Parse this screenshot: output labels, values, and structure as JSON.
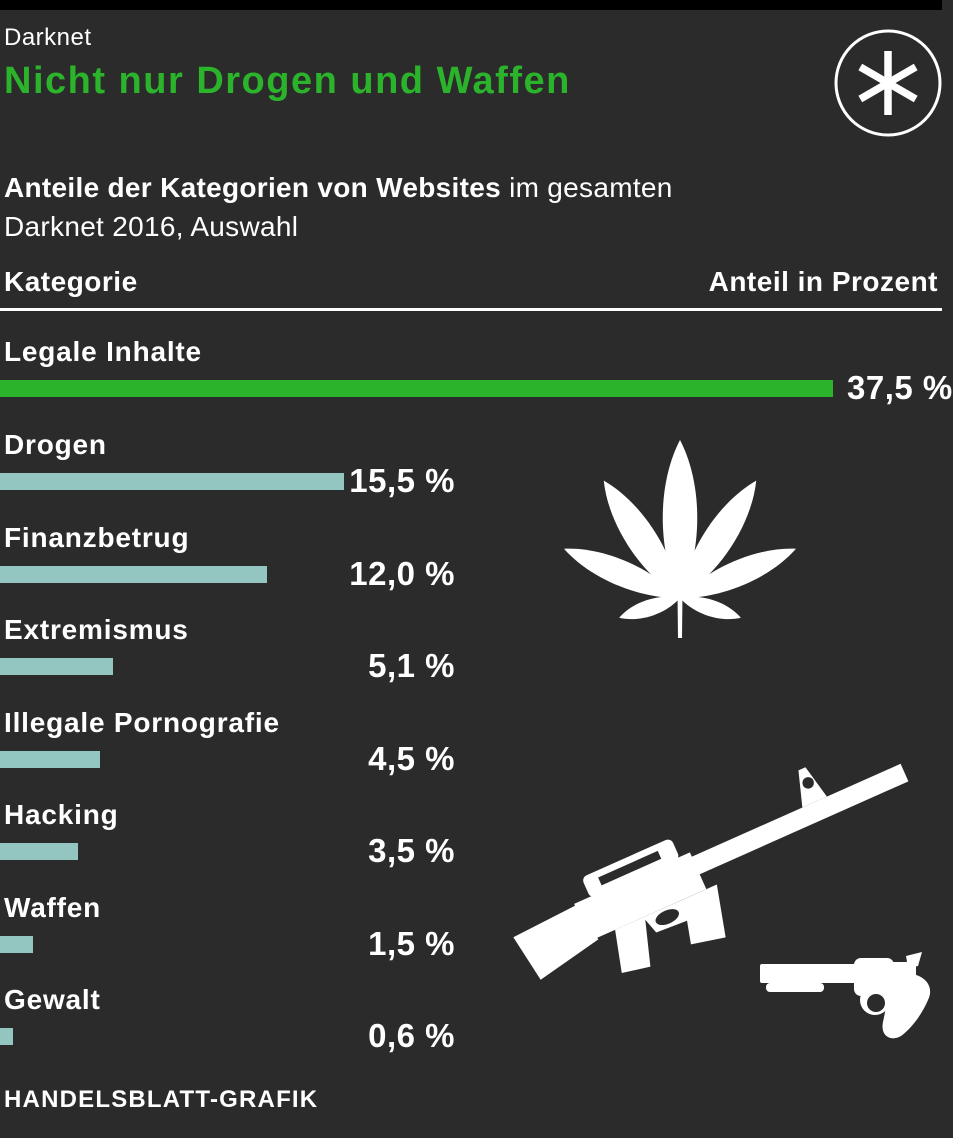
{
  "page": {
    "kicker": "Darknet",
    "headline": "Nicht nur Drogen und Waffen",
    "subtitle": {
      "bold": "Anteile der Kategorien von Websites",
      "tail": " im gesamten",
      "line2": "Darknet 2016, Auswahl"
    },
    "source": "HANDELSBLATT-GRAFIK"
  },
  "table": {
    "col_left": "Kategorie",
    "col_right": "Anteil in Prozent"
  },
  "colors": {
    "background": "#2b2b2b",
    "top_strip": "#000000",
    "headline_green": "#2bb42b",
    "bar_green": "#2bb42b",
    "bar_teal": "#93c6c0",
    "text": "#ffffff",
    "divider": "#ffffff"
  },
  "icons": {
    "logo": "asterisk-in-circle-icon",
    "drogen_illustration": "cannabis-leaf-icon",
    "waffen_illustrations": [
      "assault-rifle-icon",
      "revolver-icon"
    ]
  },
  "chart_data": {
    "type": "bar",
    "orientation": "horizontal",
    "title": "Anteile der Kategorien von Websites im gesamten Darknet 2016, Auswahl",
    "unit": "percent",
    "categories": [
      "Legale Inhalte",
      "Drogen",
      "Finanzbetrug",
      "Extremismus",
      "Illegale Pornografie",
      "Hacking",
      "Waffen",
      "Gewalt"
    ],
    "values": [
      37.5,
      15.5,
      12.0,
      5.1,
      4.5,
      3.5,
      1.5,
      0.6
    ],
    "value_labels": [
      "37,5 %",
      "15,5 %",
      "12,0 %",
      "5,1 %",
      "4,5 %",
      "3,5 %",
      "1,5 %",
      "0,6 %"
    ],
    "bar_colors": [
      "#2bb42b",
      "#93c6c0",
      "#93c6c0",
      "#93c6c0",
      "#93c6c0",
      "#93c6c0",
      "#93c6c0",
      "#93c6c0"
    ],
    "xlim": [
      0,
      42.5
    ],
    "grid": false,
    "legend": false
  }
}
